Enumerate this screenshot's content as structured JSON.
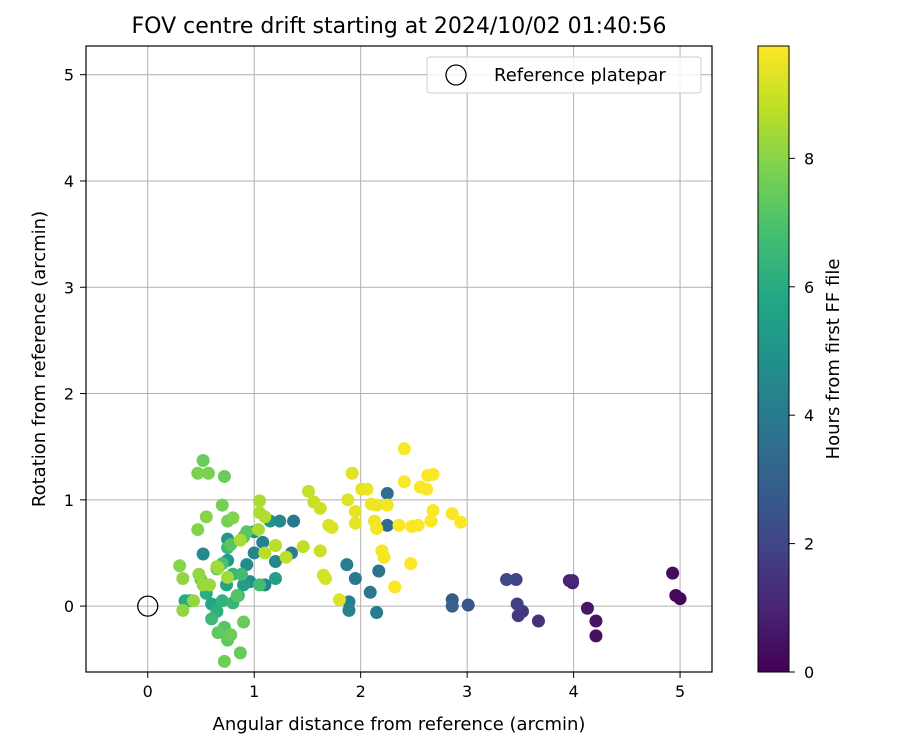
{
  "chart_data": {
    "type": "scatter",
    "title": "FOV centre drift starting at 2024/10/02 01:40:56",
    "xlabel": "Angular distance from reference (arcmin)",
    "ylabel": "Rotation from reference (arcmin)",
    "xlim": [
      -0.58,
      5.3
    ],
    "ylim": [
      -0.62,
      5.27
    ],
    "xticks": [
      0,
      1,
      2,
      3,
      4,
      5
    ],
    "yticks": [
      0,
      1,
      2,
      3,
      4,
      5
    ],
    "grid": true,
    "legend": {
      "placement": "top-right",
      "entries": [
        "Reference platepar"
      ]
    },
    "reference_point": {
      "x": 0,
      "y": 0,
      "marker": "open-circle"
    },
    "colorbar": {
      "label": "Hours from first FF file",
      "colormap": "viridis",
      "range": [
        0,
        9.75
      ],
      "ticks": [
        0,
        2,
        4,
        6,
        8
      ]
    },
    "points": [
      [
        5.0,
        0.07,
        0.1
      ],
      [
        4.96,
        0.1,
        0.2
      ],
      [
        4.93,
        0.31,
        0.3
      ],
      [
        4.21,
        -0.28,
        0.4
      ],
      [
        4.21,
        -0.14,
        0.5
      ],
      [
        4.13,
        -0.02,
        0.6
      ],
      [
        3.99,
        0.22,
        0.7
      ],
      [
        3.96,
        0.24,
        0.9
      ],
      [
        3.99,
        0.24,
        1.0
      ],
      [
        3.67,
        -0.14,
        1.3
      ],
      [
        3.52,
        -0.05,
        1.5
      ],
      [
        3.48,
        -0.09,
        1.6
      ],
      [
        3.47,
        0.02,
        1.8
      ],
      [
        3.46,
        0.25,
        2.0
      ],
      [
        3.37,
        0.25,
        2.2
      ],
      [
        3.01,
        0.01,
        2.6
      ],
      [
        2.86,
        0.06,
        2.8
      ],
      [
        2.86,
        0.0,
        3.0
      ],
      [
        2.25,
        0.76,
        3.3
      ],
      [
        2.25,
        1.06,
        3.5
      ],
      [
        2.17,
        0.33,
        3.7
      ],
      [
        2.09,
        0.13,
        3.9
      ],
      [
        2.15,
        -0.06,
        4.0
      ],
      [
        1.95,
        0.26,
        3.9
      ],
      [
        1.87,
        0.39,
        4.1
      ],
      [
        1.89,
        0.04,
        4.2
      ],
      [
        1.89,
        -0.04,
        4.3
      ],
      [
        1.37,
        0.8,
        3.9
      ],
      [
        1.35,
        0.5,
        4.1
      ],
      [
        1.1,
        0.2,
        4.3
      ],
      [
        1.2,
        0.42,
        4.5
      ],
      [
        1.08,
        0.6,
        4.2
      ],
      [
        1.0,
        0.5,
        4.4
      ],
      [
        1.0,
        0.7,
        4.6
      ],
      [
        0.93,
        0.39,
        4.7
      ],
      [
        0.96,
        0.23,
        4.8
      ],
      [
        1.24,
        0.8,
        4.6
      ],
      [
        1.15,
        0.8,
        4.9
      ],
      [
        0.52,
        0.49,
        4.6
      ],
      [
        0.75,
        0.63,
        5.0
      ],
      [
        0.75,
        0.43,
        5.2
      ],
      [
        0.9,
        0.2,
        5.4
      ],
      [
        1.2,
        0.26,
        5.5
      ],
      [
        0.85,
        0.1,
        5.6
      ],
      [
        0.74,
        0.2,
        5.7
      ],
      [
        0.6,
        0.02,
        5.8
      ],
      [
        0.4,
        0.05,
        5.9
      ],
      [
        0.35,
        0.05,
        6.0
      ],
      [
        0.55,
        0.12,
        6.1
      ],
      [
        0.65,
        -0.05,
        6.2
      ],
      [
        0.7,
        0.05,
        6.3
      ],
      [
        0.8,
        0.3,
        6.4
      ],
      [
        0.8,
        0.03,
        6.5
      ],
      [
        0.6,
        -0.12,
        6.6
      ],
      [
        0.75,
        0.55,
        6.6
      ],
      [
        0.88,
        0.3,
        6.7
      ],
      [
        1.05,
        0.2,
        6.8
      ],
      [
        0.7,
        0.4,
        6.9
      ],
      [
        0.65,
        0.35,
        7.0
      ],
      [
        0.9,
        0.65,
        7.0
      ],
      [
        0.72,
        -0.2,
        7.1
      ],
      [
        0.84,
        0.1,
        7.1
      ],
      [
        0.78,
        0.58,
        7.2
      ],
      [
        0.66,
        -0.25,
        7.3
      ],
      [
        0.93,
        0.7,
        7.2
      ],
      [
        0.75,
        -0.32,
        7.3
      ],
      [
        0.5,
        0.25,
        7.4
      ],
      [
        0.87,
        -0.44,
        7.4
      ],
      [
        0.9,
        -0.15,
        7.5
      ],
      [
        0.52,
        1.37,
        7.5
      ],
      [
        0.72,
        1.22,
        7.5
      ],
      [
        0.78,
        -0.27,
        7.6
      ],
      [
        0.72,
        -0.52,
        7.6
      ],
      [
        0.75,
        0.8,
        7.7
      ],
      [
        0.7,
        0.95,
        7.7
      ],
      [
        0.47,
        1.25,
        7.8
      ],
      [
        0.57,
        1.25,
        7.8
      ],
      [
        0.8,
        0.83,
        7.9
      ],
      [
        0.47,
        0.72,
        7.9
      ],
      [
        0.55,
        0.84,
        8.0
      ],
      [
        0.3,
        0.38,
        8.0
      ],
      [
        0.33,
        -0.04,
        8.1
      ],
      [
        0.33,
        0.26,
        8.1
      ],
      [
        0.43,
        0.05,
        8.2
      ],
      [
        0.48,
        0.3,
        8.2
      ],
      [
        0.52,
        0.2,
        8.3
      ],
      [
        0.58,
        0.2,
        8.3
      ],
      [
        0.65,
        0.37,
        8.3
      ],
      [
        0.66,
        0.36,
        8.4
      ],
      [
        0.75,
        0.27,
        8.4
      ],
      [
        0.87,
        0.62,
        8.5
      ],
      [
        1.04,
        0.72,
        8.5
      ],
      [
        1.05,
        0.99,
        8.5
      ],
      [
        1.05,
        0.88,
        8.6
      ],
      [
        1.1,
        0.84,
        8.6
      ],
      [
        1.1,
        0.5,
        8.7
      ],
      [
        1.2,
        0.57,
        8.7
      ],
      [
        1.3,
        0.46,
        8.8
      ],
      [
        1.46,
        0.56,
        8.8
      ],
      [
        1.51,
        1.08,
        8.9
      ],
      [
        1.56,
        0.98,
        8.9
      ],
      [
        1.62,
        0.92,
        9.0
      ],
      [
        1.62,
        0.52,
        9.0
      ],
      [
        1.65,
        0.29,
        9.1
      ],
      [
        1.67,
        0.26,
        9.1
      ],
      [
        1.7,
        0.76,
        9.2
      ],
      [
        1.73,
        0.74,
        9.2
      ],
      [
        1.8,
        0.06,
        9.3
      ],
      [
        1.88,
        1.0,
        9.3
      ],
      [
        1.92,
        1.25,
        9.3
      ],
      [
        1.95,
        0.78,
        9.4
      ],
      [
        1.95,
        0.89,
        9.4
      ],
      [
        2.01,
        1.1,
        9.4
      ],
      [
        2.06,
        1.1,
        9.5
      ],
      [
        2.1,
        0.96,
        9.5
      ],
      [
        2.15,
        0.95,
        9.5
      ],
      [
        2.13,
        0.8,
        9.5
      ],
      [
        2.15,
        0.73,
        9.6
      ],
      [
        2.2,
        0.52,
        9.6
      ],
      [
        2.22,
        0.46,
        9.6
      ],
      [
        2.25,
        0.95,
        9.6
      ],
      [
        2.32,
        0.18,
        9.7
      ],
      [
        2.36,
        0.76,
        9.7
      ],
      [
        2.41,
        1.48,
        9.7
      ],
      [
        2.41,
        1.17,
        9.7
      ],
      [
        2.47,
        0.4,
        9.7
      ],
      [
        2.48,
        0.75,
        9.7
      ],
      [
        2.54,
        0.76,
        9.7
      ],
      [
        2.56,
        1.12,
        9.7
      ],
      [
        2.62,
        1.1,
        9.7
      ],
      [
        2.63,
        1.23,
        9.7
      ],
      [
        2.66,
        0.8,
        9.7
      ],
      [
        2.68,
        0.9,
        9.7
      ],
      [
        2.68,
        1.24,
        9.7
      ],
      [
        2.86,
        0.87,
        9.7
      ],
      [
        2.94,
        0.79,
        9.7
      ]
    ]
  }
}
